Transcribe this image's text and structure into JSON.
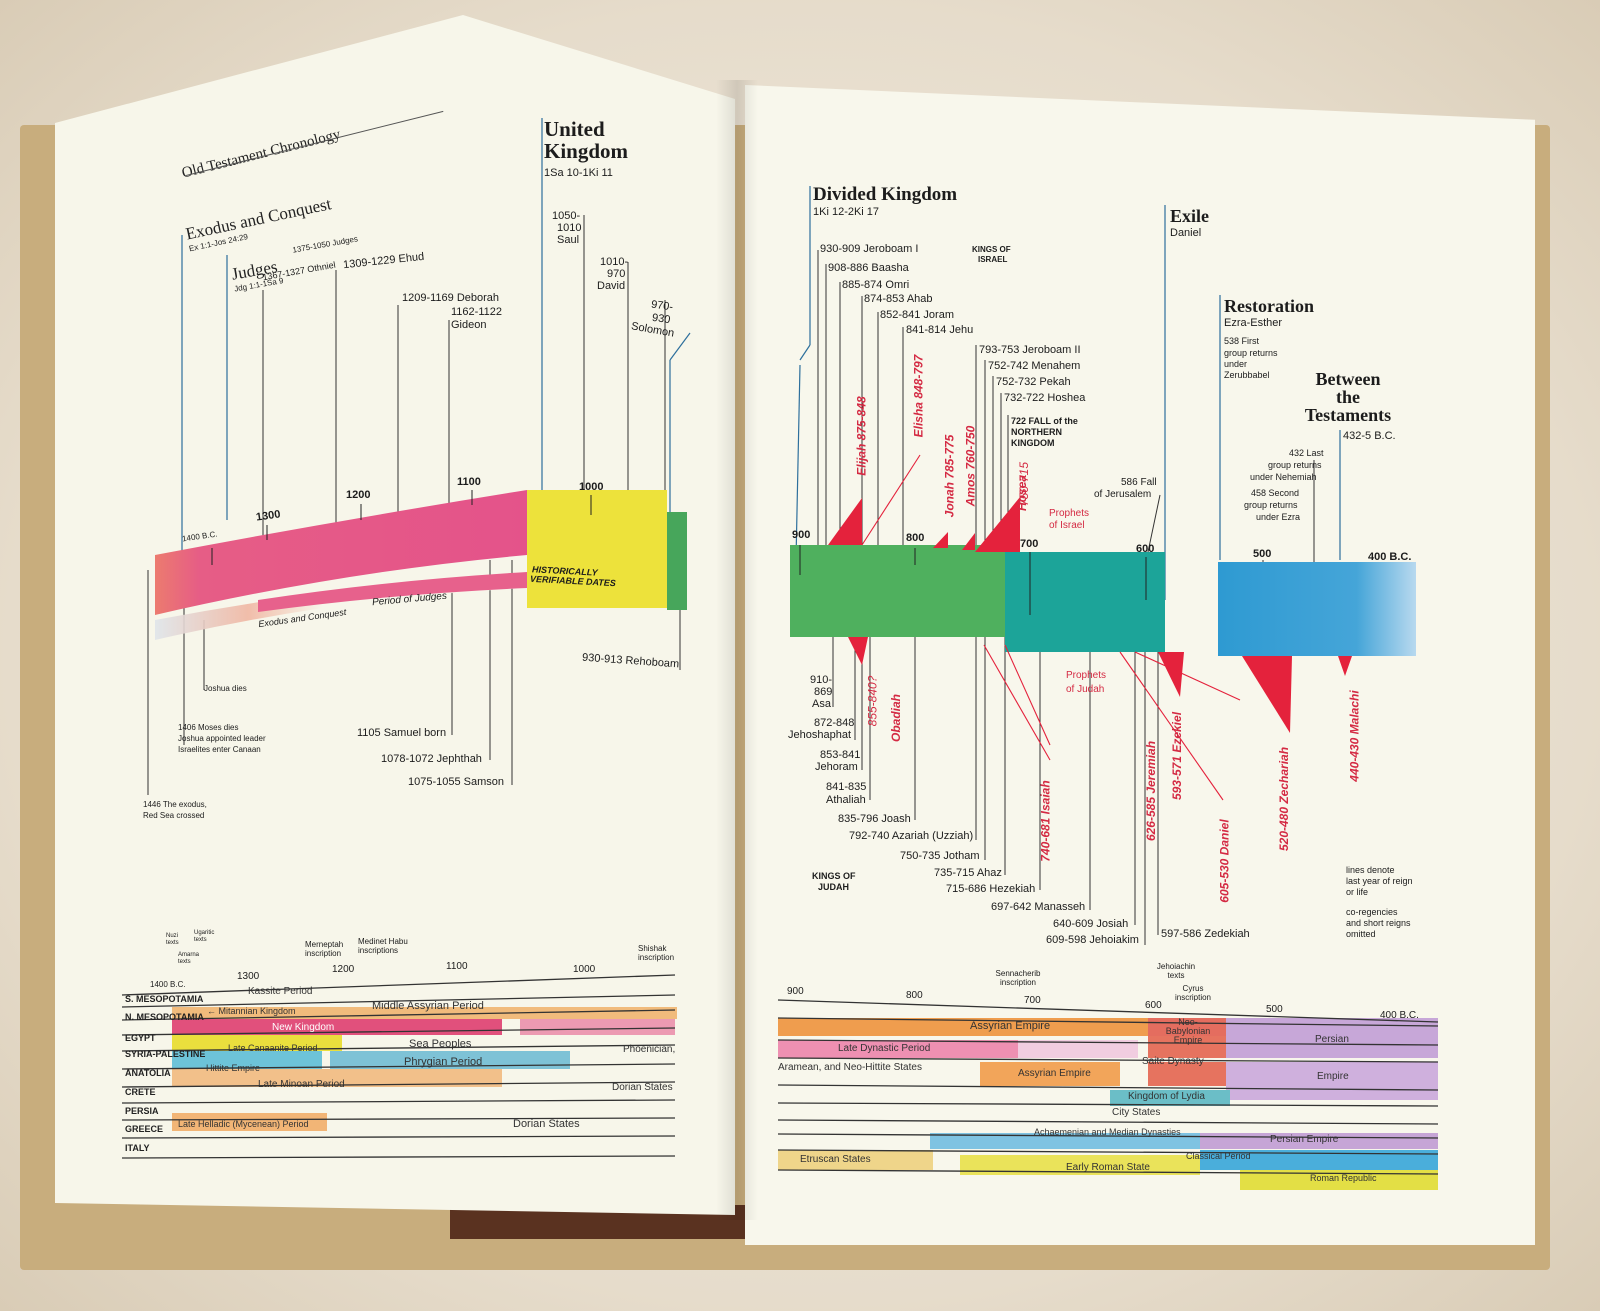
{
  "left_page": {
    "title": "Old Testament Chronology",
    "sections": {
      "exodus": {
        "title": "Exodus and Conquest",
        "ref": "Ex 1:1-Jos 24:29"
      },
      "judges": {
        "title": "Judges",
        "ref": "Jdg 1:1-1Sa 9",
        "range": "1375-1050 Judges"
      },
      "united": {
        "title_line1": "United",
        "title_line2": "Kingdom",
        "ref": "1Sa 10-1Ki 11"
      }
    },
    "top_labels": [
      "1367-1327 Othniel",
      "1309-1229 Ehud",
      "1209-1169 Deborah",
      "1162-1122",
      "Gideon",
      "1050-",
      "1010",
      "Saul",
      "1010-",
      "970",
      "David",
      "970-",
      "930",
      "Solomon"
    ],
    "axis": [
      "1400 B.C.",
      "1300",
      "1200",
      "1100",
      "1000"
    ],
    "band_labels": {
      "exodus": "Exodus and Conquest",
      "judges": "Period of Judges",
      "historical_1": "HISTORICALLY",
      "historical_2": "VERIFIABLE DATES"
    },
    "bottom_labels": {
      "joshua": "Joshua dies",
      "moses_1": "1406 Moses dies",
      "moses_2": "Joshua appointed leader",
      "moses_3": "Israelites enter Canaan",
      "exodus_1": "1446 The exodus,",
      "exodus_2": "Red Sea crossed",
      "samuel": "1105 Samuel born",
      "jephthah": "1078-1072 Jephthah",
      "samson": "1075-1055 Samson",
      "rehoboam": "930-913 Rehoboam"
    },
    "nations": {
      "top_notes": [
        "Nuzi texts",
        "Ugaritic texts",
        "Amarna texts",
        "Merneptah inscription",
        "Medinet Habu inscriptions",
        "Shishak inscription"
      ],
      "axis": [
        "1400 B.C.",
        "1300",
        "1200",
        "1100",
        "1000"
      ],
      "regions": [
        "S. MESOPOTAMIA",
        "N. MESOPOTAMIA",
        "EGYPT",
        "SYRIA-PALESTINE",
        "ANATOLIA",
        "CRETE",
        "PERSIA",
        "GREECE",
        "ITALY"
      ],
      "periods": {
        "kassite": "Kassite Period",
        "mitannian": "← Mitannian Kingdom",
        "middle_assyrian": "Middle Assyrian Period",
        "new_kingdom": "New Kingdom",
        "late_canaanite": "Late Canaanite Period",
        "sea_peoples": "Sea Peoples",
        "phoenician": "Phoenician,",
        "hittite": "Hittite Empire",
        "phrygian": "Phrygian Period",
        "late_minoan": "Late Minoan Period",
        "dorian_1": "Dorian States",
        "late_helladic": "Late Helladic (Mycenean) Period",
        "dorian_2": "Dorian States"
      }
    }
  },
  "right_page": {
    "sections": {
      "divided": {
        "title": "Divided Kingdom",
        "ref": "1Ki 12-2Ki 17"
      },
      "exile": {
        "title": "Exile",
        "ref": "Daniel"
      },
      "restoration": {
        "title": "Restoration",
        "ref": "Ezra-Esther"
      },
      "between": {
        "line1": "Between",
        "line2": "the",
        "line3": "Testaments",
        "range": "432-5 B.C."
      }
    },
    "kings_israel_label_1": "KINGS OF",
    "kings_israel_label_2": "ISRAEL",
    "israel_kings": [
      "930-909 Jeroboam I",
      "908-886 Baasha",
      "885-874 Omri",
      "874-853 Ahab",
      "852-841 Joram",
      "841-814 Jehu",
      "793-753 Jeroboam II",
      "752-742 Menahem",
      "752-732 Pekah",
      "732-722 Hoshea"
    ],
    "fall_1": "722 FALL of the",
    "fall_2": "NORTHERN",
    "fall_3": "KINGDOM",
    "restoration_notes": {
      "first_1": "538 First",
      "first_2": "group returns",
      "first_3": "under",
      "first_4": "Zerubbabel",
      "last_1": "432 Last",
      "last_2": "group returns",
      "last_3": "under Nehemiah",
      "second_1": "458 Second",
      "second_2": "group returns",
      "second_3": "under Ezra"
    },
    "fall_jerusalem_1": "586 Fall",
    "fall_jerusalem_2": "of Jerusalem",
    "prophets_israel_1": "Prophets",
    "prophets_israel_2": "of Israel",
    "prophets_judah_1": "Prophets",
    "prophets_judah_2": "of Judah",
    "prophets_top": [
      "Elijah 875-848",
      "Elisha 848-797",
      "Jonah 785-775",
      "Amos 760-750",
      "Hosea",
      "750-715"
    ],
    "prophets_bottom": [
      "855-840?",
      "Obadiah",
      "740-681 Isaiah",
      "626-585 Jeremiah",
      "593-571 Ezekiel",
      "605-530 Daniel",
      "520-480 Zechariah",
      "440-430 Malachi"
    ],
    "axis": [
      "900",
      "800",
      "700",
      "600",
      "500",
      "400 B.C."
    ],
    "judah_kings": [
      "910-",
      "869",
      "Asa",
      "872-848",
      "Jehoshaphat",
      "853-841",
      "Jehoram",
      "841-835",
      "Athaliah",
      "835-796 Joash",
      "792-740 Azariah (Uzziah)",
      "750-735 Jotham",
      "735-715 Ahaz",
      "715-686 Hezekiah",
      "697-642 Manasseh",
      "640-609 Josiah",
      "609-598 Jehoiakim",
      "597-586 Zedekiah"
    ],
    "kings_judah_label_1": "KINGS OF",
    "kings_judah_label_2": "JUDAH",
    "notes": [
      "lines denote",
      "last year of reign",
      "or life",
      "co-regencies",
      "and short reigns",
      "omitted"
    ],
    "nations": {
      "top_notes": [
        "Sennacherib inscription",
        "Jehoiachin texts",
        "Cyrus inscription"
      ],
      "axis": [
        "900",
        "800",
        "700",
        "600",
        "500",
        "400 B.C."
      ],
      "periods": {
        "assyrian_empire": "Assyrian Empire",
        "neo_babylonian": "Neo-Babylonian Empire",
        "persian": "Persian",
        "late_dynastic": "Late Dynastic Period",
        "saite": "Saite Dynasty",
        "aramean": "Aramean, and Neo-Hittite States",
        "assyrian_empire_2": "Assyrian Empire",
        "empire": "Empire",
        "lydia": "Kingdom of Lydia",
        "city_states": "City States",
        "achaemenian": "Achaemenian and Median Dynasties",
        "persian_empire": "Persian Empire",
        "classical": "Classical Period",
        "etruscan": "Etruscan States",
        "early_roman": "Early Roman State",
        "roman_republic": "Roman Republic"
      }
    }
  }
}
